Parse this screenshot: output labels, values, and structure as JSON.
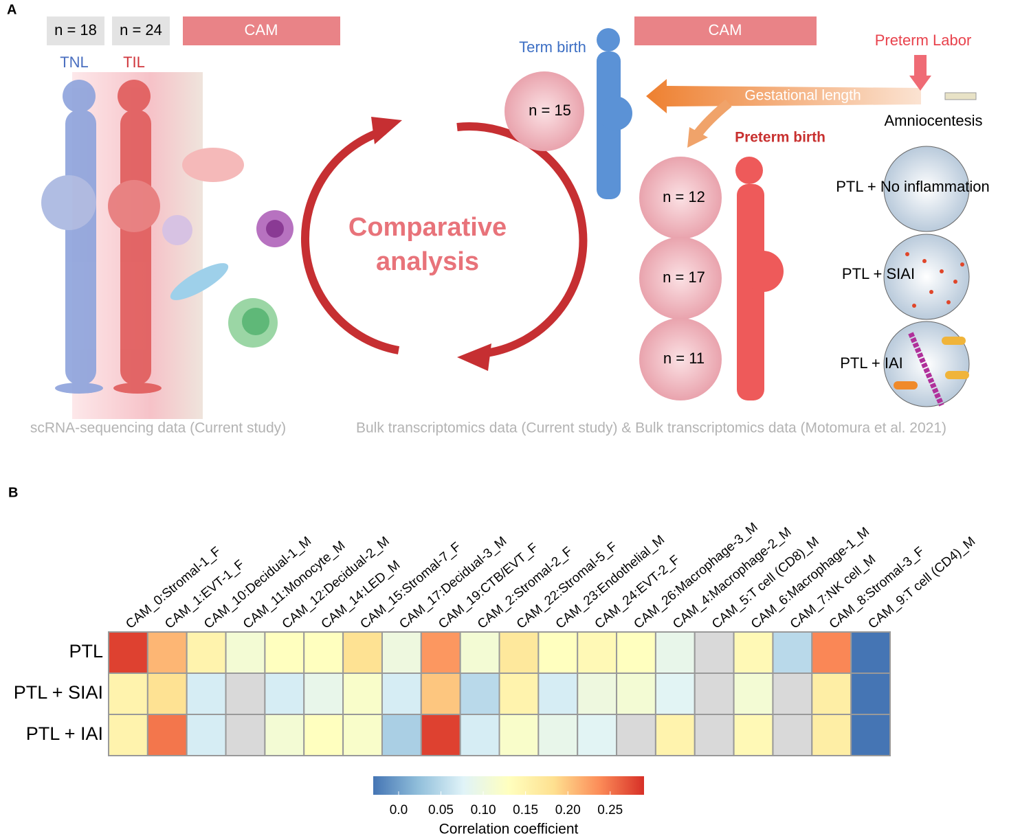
{
  "panel_a": {
    "label": "A",
    "sample_sizes_sc": [
      "n = 18",
      "n = 24"
    ],
    "groups_sc": [
      "TNL",
      "TIL"
    ],
    "tissue_left": "CAM",
    "tissue_right": "CAM",
    "center_text": [
      "Comparative",
      "analysis"
    ],
    "term_birth": "Term birth",
    "preterm_labor": "Preterm Labor",
    "gestational_length": "Gestational length",
    "amniocentesis": "Amniocentesis",
    "preterm_birth": "Preterm birth",
    "term_n": "n = 15",
    "preterm_n": [
      "n = 12",
      "n = 17",
      "n = 11"
    ],
    "conditions": [
      "PTL + No inflammation",
      "PTL + SIAI",
      "PTL + IAI"
    ],
    "caption_left": "scRNA-sequencing data (Current study)",
    "caption_right": "Bulk transcriptomics data (Current study) & Bulk transcriptomics data (Motomura et al. 2021)"
  },
  "chart_data": {
    "type": "heatmap",
    "label": "B",
    "columns": [
      "CAM_0:Stromal-1_F",
      "CAM_1:EVT-1_F",
      "CAM_10:Decidual-1_M",
      "CAM_11:Monocyte_M",
      "CAM_12:Decidual-2_M",
      "CAM_14:LED_M",
      "CAM_15:Stromal-7_F",
      "CAM_17:Decidual-3_M",
      "CAM_19:CTB/EVT_F",
      "CAM_2:Stromal-2_F",
      "CAM_22:Stromal-5_F",
      "CAM_23:Endothelial_M",
      "CAM_24:EVT-2_F",
      "CAM_26:Macrophage-3_M",
      "CAM_4:Macrophage-2_M",
      "CAM_5:T cell (CD8)_M",
      "CAM_6:Macrophage-1_M",
      "CAM_7:NK cell_M",
      "CAM_8:Stromal-3_F",
      "CAM_9:T cell (CD4)_M"
    ],
    "rows": [
      "PTL",
      "PTL + SIAI",
      "PTL + IAI"
    ],
    "values": [
      [
        0.28,
        0.21,
        0.15,
        0.11,
        0.13,
        0.13,
        0.18,
        0.1,
        0.23,
        0.11,
        0.17,
        0.13,
        0.14,
        0.13,
        0.09,
        null,
        0.14,
        0.05,
        0.24,
        -0.03
      ],
      [
        0.15,
        0.18,
        0.07,
        null,
        0.07,
        0.09,
        0.12,
        0.07,
        0.2,
        0.05,
        0.15,
        0.07,
        0.1,
        0.11,
        0.08,
        null,
        0.11,
        null,
        0.16,
        -0.03
      ],
      [
        0.15,
        0.25,
        0.07,
        null,
        0.11,
        0.13,
        0.12,
        0.04,
        0.28,
        0.07,
        0.12,
        0.09,
        0.08,
        null,
        0.15,
        null,
        0.14,
        null,
        0.16,
        -0.03
      ]
    ],
    "zlim": [
      -0.03,
      0.29
    ],
    "zticks": [
      {
        "value": 0,
        "label": "0.0"
      },
      0.05,
      {
        "value": 0.1,
        "label": "0.10"
      },
      0.15,
      {
        "value": 0.2,
        "label": "0.20"
      },
      0.25
    ],
    "colorbar_label": "Correlation coefficient",
    "colormap": [
      "#4575b4",
      "#91bfdb",
      "#e0f3f8",
      "#ffffbf",
      "#fee090",
      "#fc8d59",
      "#d73027"
    ],
    "na_color": "#d9d9d9"
  }
}
